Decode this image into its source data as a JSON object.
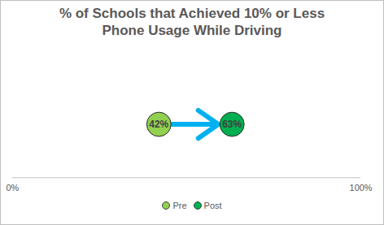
{
  "chart_data": {
    "type": "dot",
    "title": "% of Schools that Achieved 10% or Less Phone Usage While Driving",
    "series": [
      {
        "name": "Pre",
        "color": "#92d050",
        "values": [
          42
        ],
        "value_labels": [
          "42%"
        ]
      },
      {
        "name": "Post",
        "color": "#00b050",
        "values": [
          63
        ],
        "value_labels": [
          "63%"
        ]
      }
    ],
    "xlim": [
      0,
      100
    ],
    "xticks": [
      {
        "value": 0,
        "label": "0%"
      },
      {
        "value": 100,
        "label": "100%"
      }
    ],
    "tick_labels": "x",
    "data_labels": true,
    "legend": "bottom",
    "grid": false
  }
}
